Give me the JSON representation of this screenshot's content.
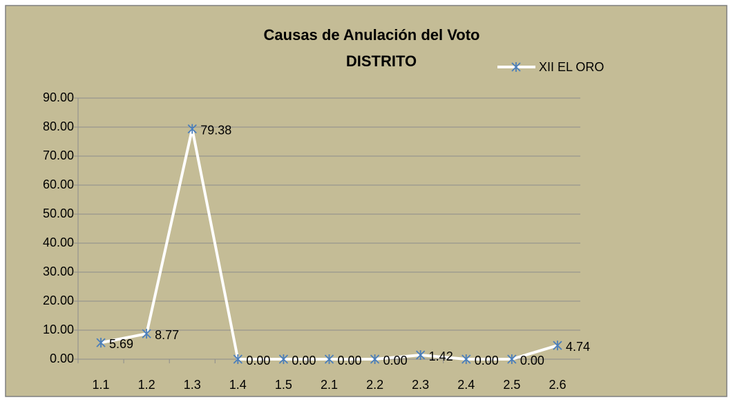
{
  "chart_data": {
    "type": "line",
    "title": "Causas de Anulación del Voto",
    "subtitle": "DISTRITO",
    "categories": [
      "1.1",
      "1.2",
      "1.3",
      "1.4",
      "1.5",
      "2.1",
      "2.2",
      "2.3",
      "2.4",
      "2.5",
      "2.6"
    ],
    "series": [
      {
        "name": "XII EL ORO",
        "color": "#ffffff",
        "marker_color": "#4a7ebb",
        "values": [
          5.69,
          8.77,
          79.38,
          0,
          0,
          0,
          0,
          1.42,
          0,
          0,
          4.74
        ],
        "value_labels": [
          "5.69",
          "8.77",
          "79.38",
          "0.00",
          "0.00",
          "0.00",
          "0.00",
          "1.42",
          "0.00",
          "0.00",
          "4.74"
        ]
      }
    ],
    "ylim": [
      0,
      90
    ],
    "yticks": [
      {
        "value": 0,
        "label": "0.00"
      },
      {
        "value": 10,
        "label": "10.00"
      },
      {
        "value": 20,
        "label": "20.00"
      },
      {
        "value": 30,
        "label": "30.00"
      },
      {
        "value": 40,
        "label": "40.00"
      },
      {
        "value": 50,
        "label": "50.00"
      },
      {
        "value": 60,
        "label": "60.00"
      },
      {
        "value": 70,
        "label": "70.00"
      },
      {
        "value": 80,
        "label": "80.00"
      },
      {
        "value": 90,
        "label": "90.00"
      }
    ],
    "grid": true,
    "legend": "top-right"
  }
}
